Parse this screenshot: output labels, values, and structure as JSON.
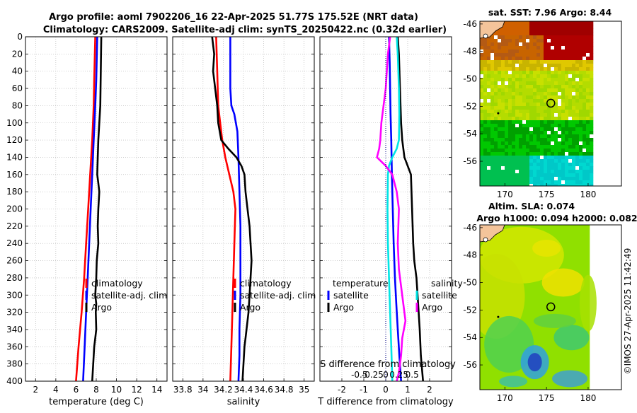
{
  "title": {
    "line1": "Argo profile: aoml 7902206_16 22-Apr-2025 51.77S 175.52E (NRT data)",
    "line2": "Climatology: CARS2009. Satellite-adj clim: synTS_20250422.nc (0.32d earlier)"
  },
  "credit": "©IMOS 27-Apr-2025 11:42:49",
  "colors": {
    "climatology": "#ff0000",
    "satellite": "#0000ff",
    "argo": "#000000",
    "sal_sat": "#00e5e5",
    "sal_argo": "#ff00ff"
  },
  "chart_data": [
    {
      "id": "temperature",
      "type": "line",
      "xlabel": "temperature (deg C)",
      "ylabel": "",
      "xlim": [
        1,
        15
      ],
      "ylim": [
        400,
        0
      ],
      "xticks": [
        2,
        4,
        6,
        8,
        10,
        12,
        14
      ],
      "yticks": [
        0,
        20,
        40,
        60,
        80,
        100,
        120,
        140,
        160,
        180,
        200,
        220,
        240,
        260,
        280,
        300,
        320,
        340,
        360,
        380,
        400
      ],
      "legend": [
        "climatology",
        "satellite-adj. clim",
        "Argo"
      ],
      "series": [
        {
          "name": "climatology",
          "color": "#ff0000",
          "x": [
            7.9,
            7.8,
            7.75,
            7.6,
            7.4,
            7.2,
            7.0,
            6.8,
            6.55,
            6.25,
            6.0
          ],
          "y": [
            0,
            50,
            80,
            120,
            160,
            200,
            240,
            280,
            320,
            360,
            400
          ]
        },
        {
          "name": "satellite-adj. clim",
          "color": "#0000ff",
          "x": [
            8.1,
            8.0,
            7.9,
            7.75,
            7.6,
            7.45,
            7.3,
            7.15,
            7.0,
            6.85,
            6.7
          ],
          "y": [
            0,
            50,
            80,
            120,
            160,
            200,
            240,
            280,
            320,
            360,
            400
          ]
        },
        {
          "name": "Argo",
          "color": "#000000",
          "x": [
            8.5,
            8.45,
            8.4,
            8.3,
            8.2,
            8.15,
            8.1,
            8.2,
            8.3,
            8.2,
            8.15,
            8.2,
            8.05,
            8.0,
            7.9,
            8.0,
            7.95,
            8.0,
            7.9,
            7.8,
            7.75,
            7.7,
            7.6
          ],
          "y": [
            0,
            40,
            80,
            100,
            120,
            140,
            160,
            170,
            180,
            200,
            220,
            240,
            260,
            280,
            300,
            310,
            320,
            340,
            350,
            360,
            370,
            380,
            400
          ]
        }
      ]
    },
    {
      "id": "salinity",
      "type": "line",
      "xlabel": "salinity",
      "ylabel": "",
      "xlim": [
        33.7,
        35.1
      ],
      "ylim": [
        400,
        0
      ],
      "xticks": [
        33.8,
        34,
        34.2,
        34.4,
        34.6,
        34.8,
        35
      ],
      "legend": [
        "climatology",
        "satellite-adj. clim",
        "Argo"
      ],
      "series": [
        {
          "name": "climatology",
          "color": "#ff0000",
          "x": [
            34.13,
            34.14,
            34.15,
            34.17,
            34.19,
            34.22,
            34.26,
            34.3,
            34.32,
            34.31,
            34.3,
            34.29,
            34.28,
            34.27
          ],
          "y": [
            0,
            40,
            80,
            100,
            120,
            140,
            160,
            180,
            200,
            240,
            280,
            320,
            360,
            400
          ]
        },
        {
          "name": "satellite-adj. clim",
          "color": "#0000ff",
          "x": [
            34.27,
            34.27,
            34.27,
            34.28,
            34.31,
            34.34,
            34.35,
            34.36,
            34.37,
            34.37,
            34.37,
            34.36,
            34.36,
            34.35
          ],
          "y": [
            0,
            30,
            60,
            80,
            90,
            110,
            140,
            180,
            220,
            260,
            300,
            340,
            370,
            400
          ]
        },
        {
          "name": "Argo",
          "color": "#000000",
          "x": [
            34.09,
            34.11,
            34.1,
            34.12,
            34.14,
            34.15,
            34.18,
            34.25,
            34.33,
            34.38,
            34.41,
            34.42,
            34.44,
            34.46,
            34.48,
            34.47,
            34.46,
            34.45,
            34.43,
            34.42,
            34.41,
            34.4,
            34.39
          ],
          "y": [
            0,
            20,
            40,
            60,
            80,
            100,
            120,
            130,
            140,
            150,
            160,
            180,
            200,
            220,
            260,
            280,
            300,
            320,
            340,
            350,
            360,
            380,
            400
          ]
        }
      ]
    },
    {
      "id": "difference",
      "type": "line",
      "xlabel": "T difference from climatology",
      "xlabel2": "S difference from climatology",
      "xlim": [
        -3,
        3
      ],
      "ylim": [
        400,
        0
      ],
      "xticks": [
        -2,
        -1,
        0,
        1,
        2
      ],
      "xticks2": [
        "-0.5",
        "-0.25",
        "0",
        "0.25",
        "0.5"
      ],
      "legend_temperature": "temperature",
      "legend_salinity": "salinity",
      "legend_satellite": "satellite",
      "legend_argo": "Argo",
      "series": [
        {
          "name": "T satellite",
          "color": "#0000ff",
          "x": [
            0.15,
            0.18,
            0.2,
            0.22,
            0.25,
            0.28,
            0.32,
            0.36,
            0.42,
            0.48,
            0.55,
            0.62,
            0.7
          ],
          "y": [
            0,
            30,
            60,
            90,
            120,
            160,
            200,
            240,
            280,
            310,
            340,
            370,
            400
          ]
        },
        {
          "name": "T Argo",
          "color": "#000000",
          "x": [
            0.55,
            0.6,
            0.65,
            0.7,
            0.75,
            0.85,
            1.0,
            1.15,
            1.2,
            1.25,
            1.3,
            1.4,
            1.45,
            1.5,
            1.55,
            1.6,
            1.7
          ],
          "y": [
            0,
            20,
            60,
            100,
            120,
            140,
            150,
            160,
            200,
            240,
            260,
            280,
            300,
            320,
            340,
            370,
            400
          ]
        },
        {
          "name": "S satellite",
          "color": "#00e5e5",
          "x": [
            0.5,
            0.55,
            0.6,
            0.62,
            0.6,
            0.5,
            0.3,
            0.15,
            0.1,
            0.08,
            0.1,
            0.15,
            0.2,
            0.25,
            0.3
          ],
          "y": [
            0,
            20,
            60,
            90,
            120,
            130,
            140,
            150,
            160,
            200,
            240,
            280,
            320,
            360,
            400
          ]
        },
        {
          "name": "S Argo",
          "color": "#ff00ff",
          "x": [
            0.2,
            0.1,
            0.05,
            0.0,
            -0.1,
            -0.2,
            -0.25,
            -0.3,
            -0.4,
            0.0,
            0.3,
            0.5,
            0.6,
            0.55,
            0.6,
            0.7,
            0.8,
            0.9,
            0.75,
            0.7,
            0.6,
            0.5
          ],
          "y": [
            0,
            20,
            40,
            60,
            80,
            100,
            120,
            130,
            140,
            150,
            160,
            180,
            200,
            240,
            270,
            290,
            310,
            330,
            350,
            370,
            390,
            400
          ]
        }
      ]
    },
    {
      "id": "sst_map",
      "type": "heatmap",
      "title": "sat. SST: 7.96 Argo: 8.44",
      "xlim": [
        167,
        184
      ],
      "ylim": [
        -57.8,
        -45.8
      ],
      "xticks": [
        170,
        175,
        180
      ],
      "yticks": [
        -46,
        -48,
        -50,
        -52,
        -54,
        -56
      ],
      "marker": {
        "lon": 175.52,
        "lat": -51.77
      }
    },
    {
      "id": "sla_map",
      "type": "heatmap",
      "title": "Altim. SLA: 0.074",
      "title2": "Argo h1000: 0.094 h2000: 0.082",
      "xlim": [
        167,
        184
      ],
      "ylim": [
        -57.8,
        -45.8
      ],
      "xticks": [
        170,
        175,
        180
      ],
      "yticks": [
        -46,
        -48,
        -50,
        -52,
        -54,
        -56
      ],
      "marker": {
        "lon": 175.52,
        "lat": -51.77
      }
    }
  ]
}
